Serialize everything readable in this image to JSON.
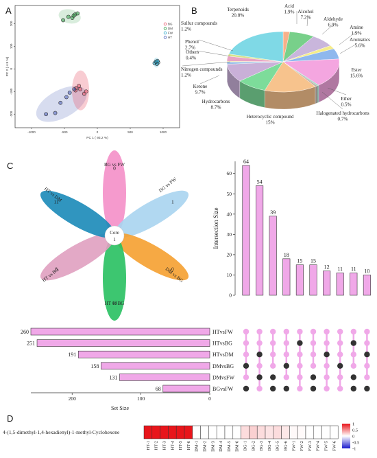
{
  "panels": {
    "a": "A",
    "b": "B",
    "c": "C",
    "d": "D"
  },
  "chart_data": [
    {
      "panel": "A",
      "type": "scatter",
      "xlabel": "PC 1 ( 93.2 %)",
      "ylabel": "PC 2 ( 4.9 %)",
      "xticks": [
        "-1000",
        "-500",
        "0",
        "500",
        "1000"
      ],
      "yticks": [
        "-200",
        "-100",
        "0",
        "100",
        "200"
      ],
      "xlim": [
        -1250,
        1250
      ],
      "ylim": [
        -260,
        280
      ],
      "legend": [
        "BG",
        "DM",
        "FW",
        "HT"
      ],
      "legend_placement": "top-right",
      "colors": {
        "BG": "#e8556b",
        "DM": "#2e9b45",
        "FW": "#2aa6c9",
        "HT": "#4a5fb8"
      },
      "series": [
        {
          "name": "BG",
          "points": [
            [
              -330,
              -95
            ],
            [
              -260,
              -90
            ],
            [
              -280,
              -75
            ],
            [
              -200,
              -110
            ],
            [
              -170,
              -100
            ],
            [
              -320,
              -85
            ]
          ]
        },
        {
          "name": "DM",
          "points": [
            [
              -520,
              215
            ],
            [
              -440,
              230
            ],
            [
              -380,
              225
            ],
            [
              -340,
              240
            ],
            [
              -300,
              245
            ],
            [
              -360,
              235
            ]
          ]
        },
        {
          "name": "FW",
          "points": [
            [
              870,
              25
            ],
            [
              900,
              30
            ],
            [
              925,
              28
            ],
            [
              905,
              22
            ],
            [
              890,
              32
            ],
            [
              915,
              35
            ]
          ]
        },
        {
          "name": "HT",
          "points": [
            [
              -780,
              -200
            ],
            [
              -640,
              -195
            ],
            [
              -560,
              -150
            ],
            [
              -470,
              -125
            ],
            [
              -350,
              -90
            ],
            [
              -420,
              -105
            ]
          ]
        }
      ]
    },
    {
      "panel": "B",
      "type": "pie",
      "labels": [
        "Terpenoids",
        "Acid",
        "Alcohol",
        "Aldehyde",
        "Amine",
        "Aromatics",
        "Ester",
        "Ether",
        "Halogenated hydrocarbons",
        "Heterocyclic compound",
        "Hydrocarbons",
        "Ketone",
        "Nitrogen compounds",
        "Others",
        "Phenol",
        "Sulfur compounds"
      ],
      "values": [
        20.8,
        1.9,
        7.2,
        6.9,
        1.9,
        5.6,
        15.6,
        0.5,
        0.7,
        15,
        8.7,
        9.7,
        1.2,
        0.4,
        2.7,
        1.2
      ],
      "display": [
        "20.8%",
        "1.9%",
        "7.2%",
        "6.9%",
        "1.9%",
        "5.6%",
        "15.6%",
        "0.5%",
        "0.7%",
        "15%",
        "8.7%",
        "9.7%",
        "1.2%",
        "0.4%",
        "2.7%",
        "1.2%"
      ],
      "colors": [
        "#7fd9e6",
        "#f7b08a",
        "#78d08a",
        "#c9b6dc",
        "#f5ec8a",
        "#8fb8ee",
        "#f4a6e0",
        "#8fd3c0",
        "#c2b3a8",
        "#f7c38d",
        "#7ddc9a",
        "#c9b0d8",
        "#9ac0e8",
        "#f0e08a",
        "#e9a4c4",
        "#d7e38a"
      ]
    },
    {
      "panel": "C",
      "type": "bar",
      "subtype": "upset",
      "ylabel": "Intersection Size",
      "yticks": [
        "0",
        "10",
        "20",
        "30",
        "40",
        "50",
        "60"
      ],
      "ylim": [
        0,
        66
      ],
      "values": [
        64,
        54,
        39,
        18,
        15,
        15,
        12,
        11,
        11,
        10
      ],
      "sets": [
        "HTvsFW",
        "HTvsBG",
        "HTvsDM",
        "DMvsBG",
        "DMvsFW",
        "BGvsFW"
      ],
      "set_sizes": [
        260,
        251,
        191,
        158,
        131,
        68
      ],
      "set_size_label": "Set Size",
      "set_size_ticks": [
        "200",
        "100",
        "0"
      ],
      "set_size_max": 260,
      "matrix": [
        [
          1,
          1,
          1,
          1,
          1,
          1,
          1,
          1,
          1,
          1
        ],
        [
          1,
          1,
          1,
          1,
          0,
          1,
          1,
          1,
          0,
          1
        ],
        [
          1,
          0,
          1,
          1,
          1,
          1,
          0,
          1,
          1,
          0
        ],
        [
          0,
          1,
          1,
          0,
          1,
          1,
          1,
          0,
          1,
          1
        ],
        [
          1,
          0,
          0,
          1,
          1,
          0,
          1,
          1,
          0,
          1
        ],
        [
          0,
          1,
          0,
          0,
          1,
          0,
          1,
          1,
          0,
          0
        ]
      ],
      "bar_color": "#f0a8e8",
      "flower": {
        "petals": [
          {
            "label": "BG vs FW",
            "count": "0",
            "color": "#f48fc8"
          },
          {
            "label": "DG vs FW",
            "count": "1",
            "color": "#a8d4f0"
          },
          {
            "label": "DM vs BG",
            "count": "0",
            "color": "#f5a030"
          },
          {
            "label": "HT vs BG",
            "count": "18",
            "color": "#28c060"
          },
          {
            "label": "HT vs BG",
            "count": "8",
            "color": "#e0a0c0"
          },
          {
            "label": "HT vs DM",
            "count": "11",
            "color": "#1a8ab8"
          }
        ],
        "core_label": "Core",
        "core_count": "1"
      }
    },
    {
      "panel": "D",
      "type": "heatmap",
      "row_label": "4-(1,5-dimethyl-1,4-hexadienyl)-1-methyl-Cyclohexene",
      "columns": [
        "HT-1",
        "HT-2",
        "HT-3",
        "HT-4",
        "HT-5",
        "HT-6",
        "DM-1",
        "DM-2",
        "DM-3",
        "DM-4",
        "DM-5",
        "DM-6",
        "BG-1",
        "BG-2",
        "BG-3",
        "BG-4",
        "BG-5",
        "BG-6",
        "FW-1",
        "FW-2",
        "FW-3",
        "FW-4",
        "FW-5",
        "FW-6"
      ],
      "values": [
        1,
        1,
        1,
        1,
        1,
        1,
        0,
        0,
        0,
        0,
        0,
        0,
        0.15,
        0.2,
        0.15,
        0.12,
        0.15,
        0.1,
        0.03,
        0.02,
        0,
        0,
        0,
        0
      ],
      "scale_ticks": [
        "1",
        "0.5",
        "0",
        "-0.5",
        "-1"
      ],
      "scale_range": [
        -1,
        1
      ],
      "colors": {
        "high": "#e8151b",
        "mid": "#ffffff",
        "low": "#1a1acc"
      }
    }
  ]
}
